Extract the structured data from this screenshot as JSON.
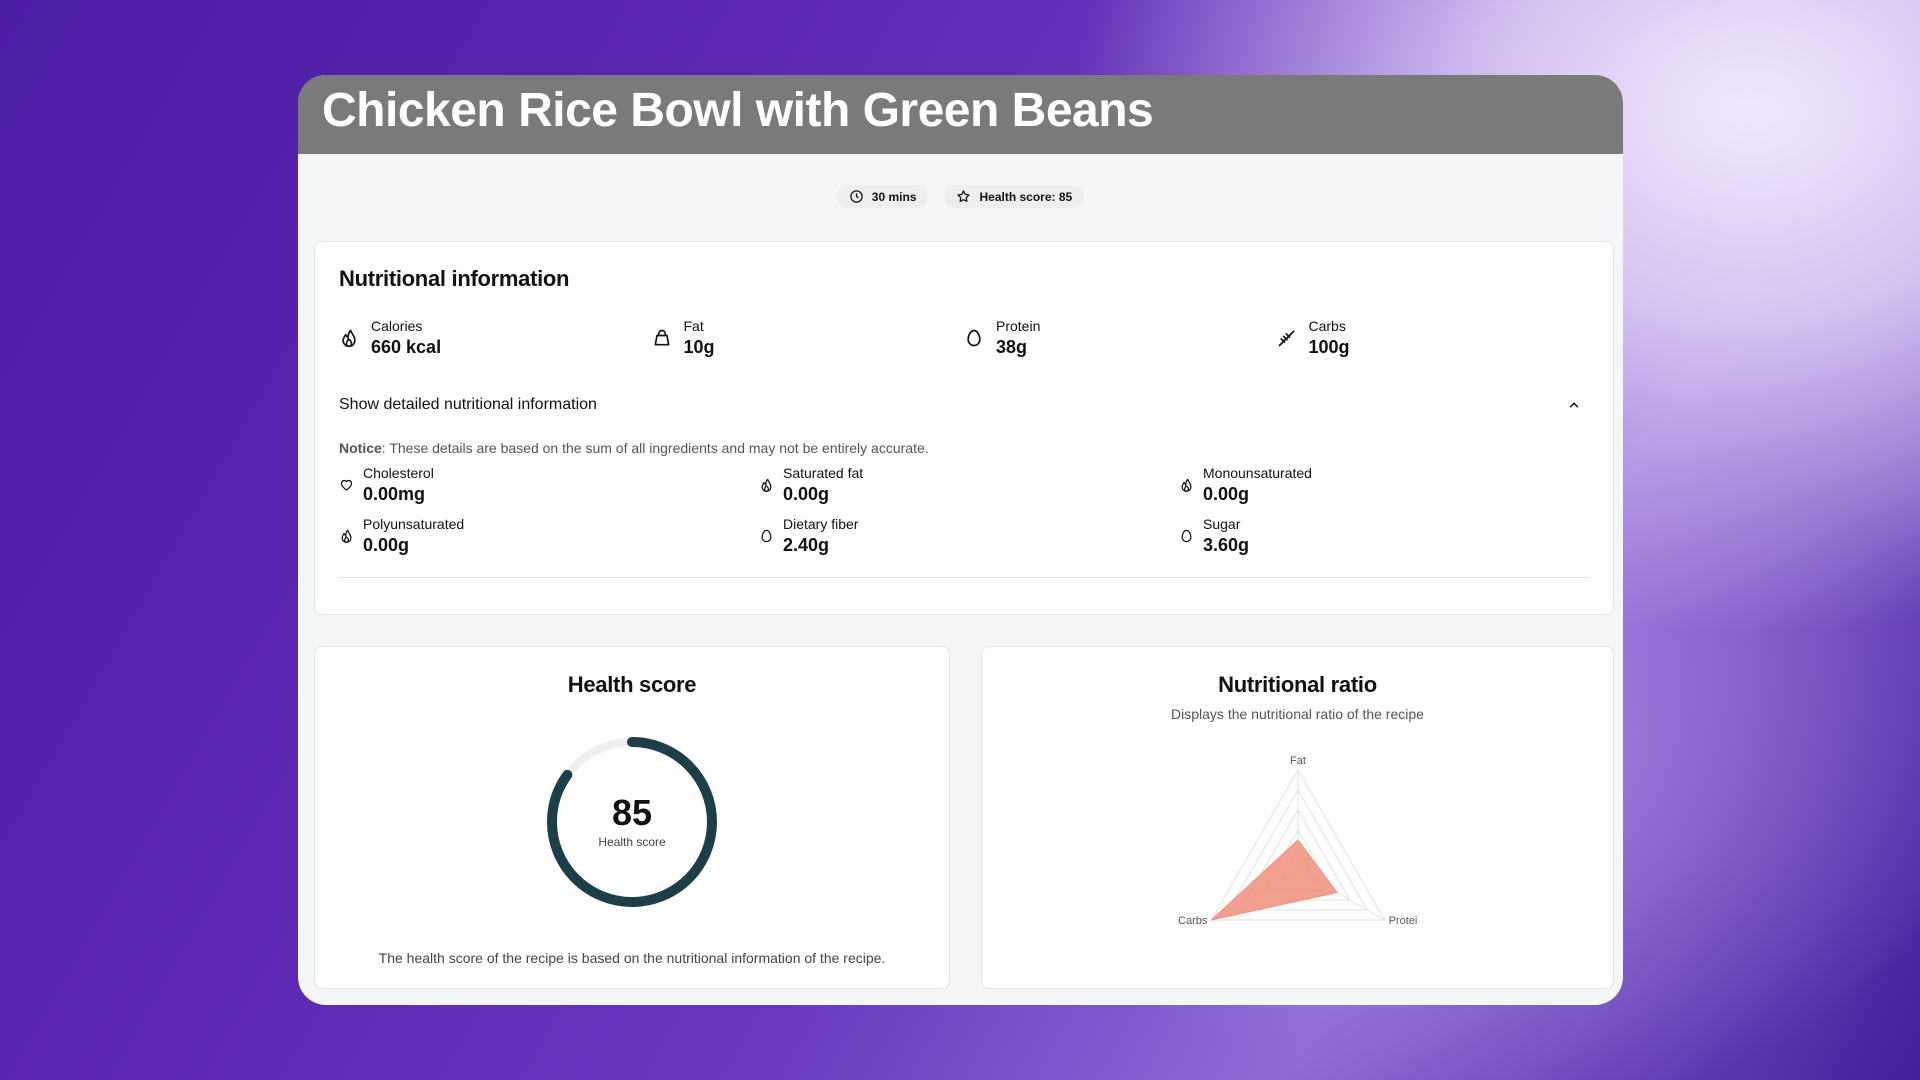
{
  "recipe": {
    "title": "Chicken Rice Bowl with Green Beans",
    "time": "30 mins",
    "health_badge": "Health score: 85"
  },
  "nutrition": {
    "heading": "Nutritional information",
    "macros": [
      {
        "label": "Calories",
        "value": "660 kcal",
        "icon": "flame-icon"
      },
      {
        "label": "Fat",
        "value": "10g",
        "icon": "bag-icon"
      },
      {
        "label": "Protein",
        "value": "38g",
        "icon": "egg-icon"
      },
      {
        "label": "Carbs",
        "value": "100g",
        "icon": "wheat-icon"
      }
    ],
    "toggle_label": "Show detailed nutritional information",
    "notice_bold": "Notice",
    "notice_text": ": These details are based on the sum of all ingredients and may not be entirely accurate.",
    "details": [
      {
        "label": "Cholesterol",
        "value": "0.00mg",
        "icon": "heart-icon"
      },
      {
        "label": "Saturated fat",
        "value": "0.00g",
        "icon": "flame-icon"
      },
      {
        "label": "Monounsaturated",
        "value": "0.00g",
        "icon": "flame-icon"
      },
      {
        "label": "Polyunsaturated",
        "value": "0.00g",
        "icon": "flame-icon"
      },
      {
        "label": "Dietary fiber",
        "value": "2.40g",
        "icon": "egg-icon"
      },
      {
        "label": "Sugar",
        "value": "3.60g",
        "icon": "egg-icon"
      }
    ]
  },
  "health": {
    "heading": "Health score",
    "score": "85",
    "score_fraction": 0.85,
    "caption": "Health score",
    "footnote": "The health score of the recipe is based on the nutritional information of the recipe.",
    "ring_color": "#1d3e48",
    "track_color": "#eeeeee"
  },
  "ratio": {
    "heading": "Nutritional ratio",
    "subheading": "Displays the nutritional ratio of the recipe",
    "chart_data": {
      "type": "radar",
      "axes": [
        "Fat",
        "Protei",
        "Carbs"
      ],
      "values": [
        0.3,
        0.45,
        1.0
      ],
      "fill_color": "#f0907e"
    }
  }
}
